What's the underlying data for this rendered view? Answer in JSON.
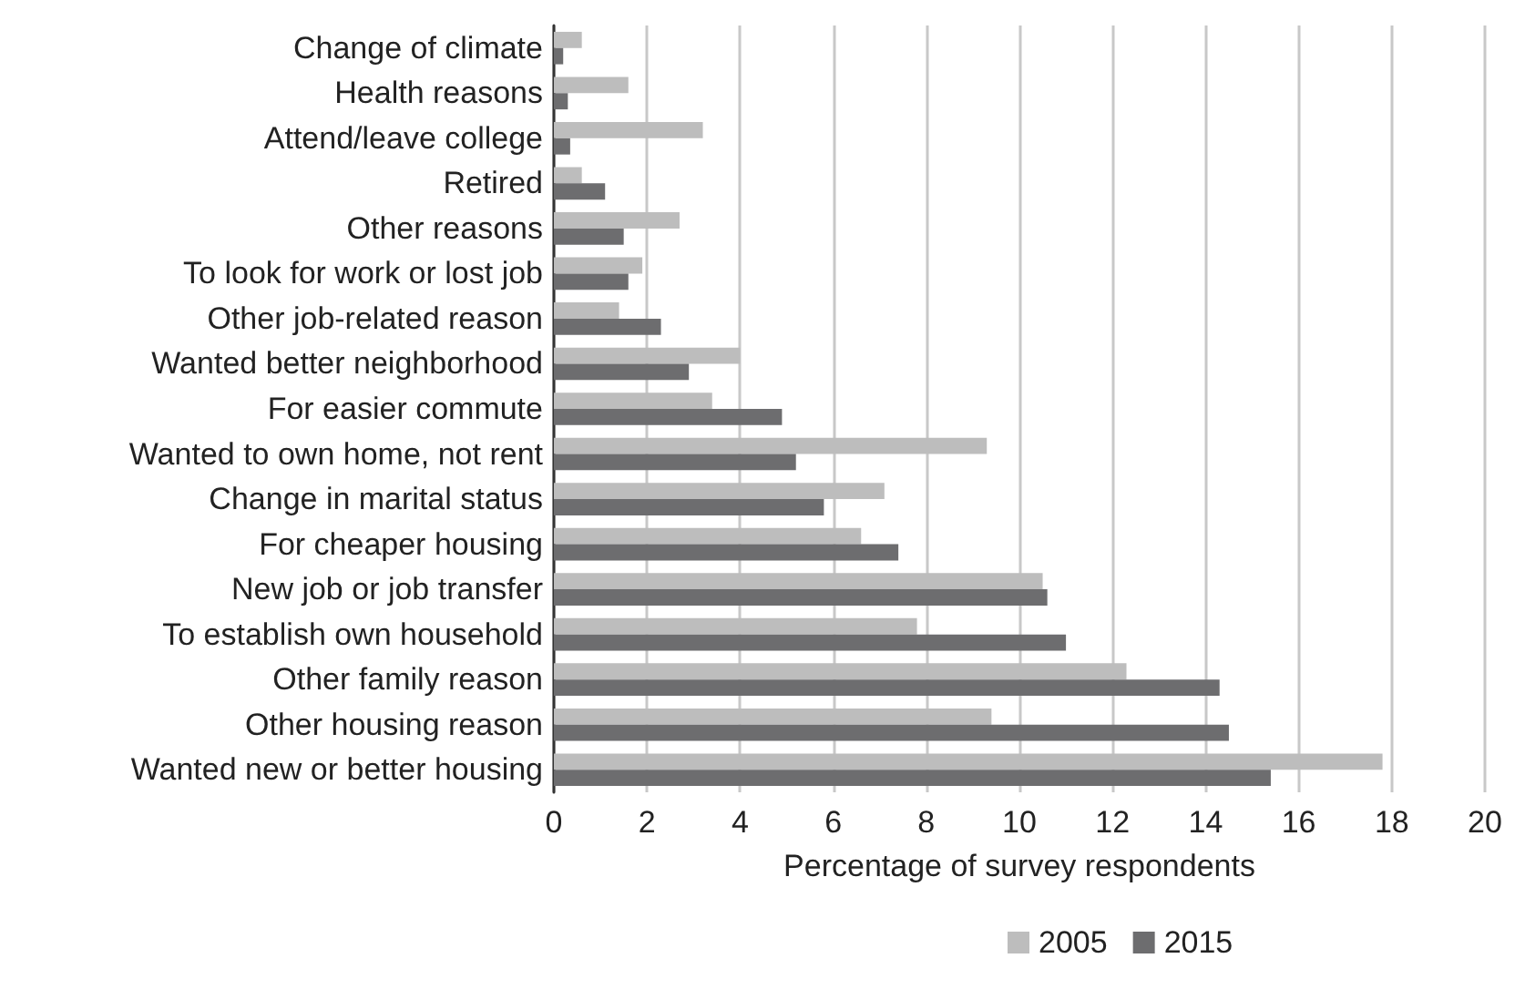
{
  "chart_data": {
    "type": "bar",
    "orientation": "horizontal",
    "xlabel": "Percentage of survey respondents",
    "categories": [
      "Change of climate",
      "Health reasons",
      "Attend/leave college",
      "Retired",
      "Other reasons",
      "To look for work or lost job",
      "Other job-related reason",
      "Wanted better neighborhood",
      "For easier commute",
      "Wanted to own home, not rent",
      "Change in marital status",
      "For cheaper housing",
      "New job or job transfer",
      "To establish own household",
      "Other family reason",
      "Other housing reason",
      "Wanted new or better housing"
    ],
    "series": [
      {
        "name": "2005",
        "color": "#bdbdbd",
        "values": [
          0.6,
          1.6,
          3.2,
          0.6,
          2.7,
          1.9,
          1.4,
          4.0,
          3.4,
          9.3,
          7.1,
          6.6,
          10.5,
          7.8,
          12.3,
          9.4,
          17.8
        ]
      },
      {
        "name": "2015",
        "color": "#6d6d6f",
        "values": [
          0.2,
          0.3,
          0.35,
          1.1,
          1.5,
          1.6,
          2.3,
          2.9,
          4.9,
          5.2,
          5.8,
          7.4,
          10.6,
          11.0,
          14.3,
          14.5,
          15.4
        ]
      }
    ],
    "xlim": [
      0,
      20
    ],
    "xticks": [
      0,
      2,
      4,
      6,
      8,
      10,
      12,
      14,
      16,
      18,
      20
    ],
    "grid": "x",
    "legend": "bottom"
  }
}
